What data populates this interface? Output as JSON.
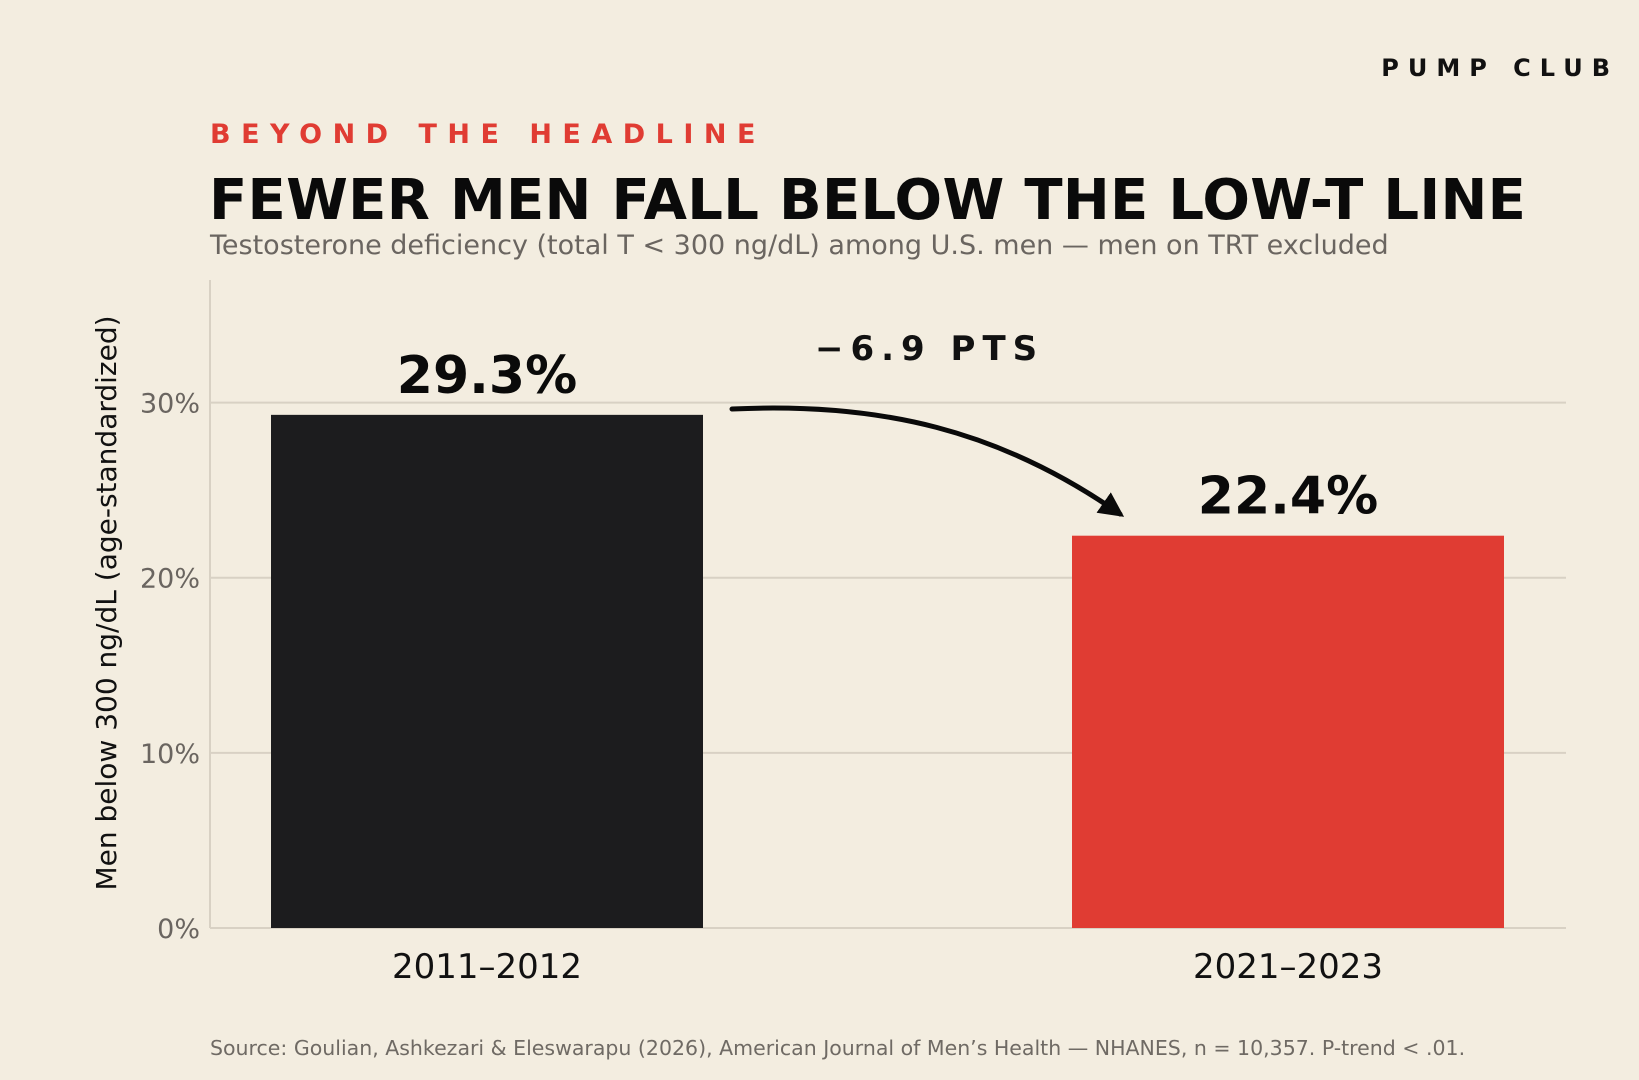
{
  "brand": "PUMP CLUB",
  "kicker": "BEYOND THE HEADLINE",
  "source": "Source: Goulian, Ashkezari & Eleswarapu (2026), American Journal of Men’s Health — NHANES, n = 10,357.  P-trend < .01.",
  "colors": {
    "background": "#f3ede0",
    "accent": "#e03c33",
    "dark_bar": "#1c1c1e",
    "grid": "#d8d1c4"
  },
  "chart_data": {
    "type": "bar",
    "title": "FEWER MEN FALL BELOW THE LOW-T LINE",
    "subtitle": "Testosterone deficiency (total T < 300 ng/dL) among U.S. men — men on TRT excluded",
    "ylabel": "Men below 300 ng/dL (age-standardized)",
    "xlabel": "",
    "ylim": [
      0,
      37
    ],
    "yticks": [
      0,
      10,
      20,
      30
    ],
    "ytick_labels": [
      "0%",
      "10%",
      "20%",
      "30%"
    ],
    "grid": true,
    "categories": [
      "2011–2012",
      "2021–2023"
    ],
    "values": [
      29.3,
      22.4
    ],
    "value_labels": [
      "29.3%",
      "22.4%"
    ],
    "bar_colors": [
      "#1c1c1e",
      "#e03c33"
    ],
    "annotation": "−6.9 PTS"
  }
}
